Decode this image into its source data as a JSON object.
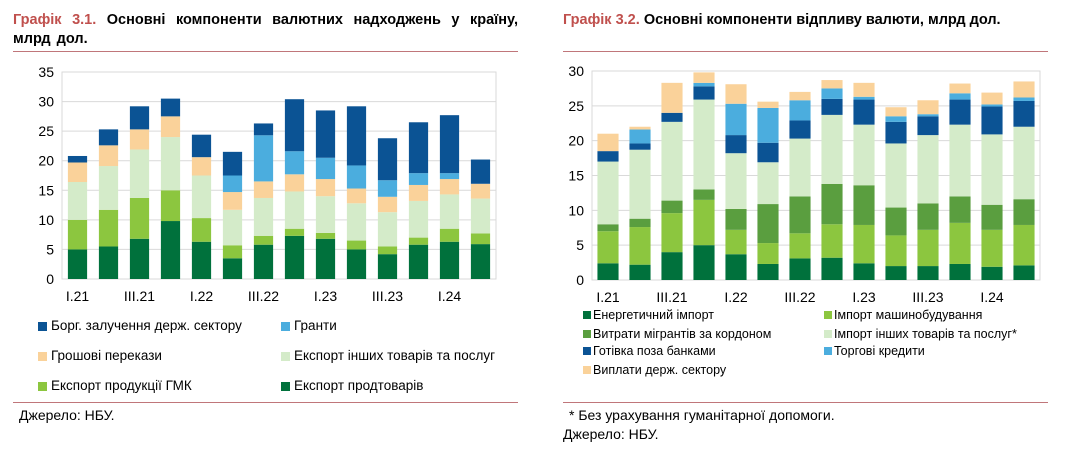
{
  "chart1": {
    "title_label": "Графік 3.1.",
    "title_text": "Основні компоненти валютних надходжень у країну, млрд дол.",
    "source": "Джерело: НБУ.",
    "legend_order": [
      5,
      4,
      3,
      2,
      1,
      0
    ],
    "chart_data": {
      "type": "bar",
      "stacked": true,
      "categories": [
        "I.21",
        "II.21",
        "III.21",
        "IV.21",
        "I.22",
        "II.22",
        "III.22",
        "IV.22",
        "I.23",
        "II.23",
        "III.23",
        "IV.23",
        "I.24",
        "II.24"
      ],
      "x_tick_labels": [
        "I.21",
        "",
        "III.21",
        "",
        "I.22",
        "",
        "III.22",
        "",
        "I.23",
        "",
        "III.23",
        "",
        "I.24",
        ""
      ],
      "ylim": [
        0,
        35
      ],
      "yticks": [
        0,
        5,
        10,
        15,
        20,
        25,
        30,
        35
      ],
      "series": [
        {
          "name": "Експорт продтоварів",
          "color": "#00713c",
          "values": [
            5.0,
            5.5,
            6.8,
            9.8,
            6.3,
            3.5,
            5.8,
            7.3,
            6.8,
            5.0,
            4.2,
            5.8,
            6.3,
            5.9
          ]
        },
        {
          "name": "Експорт продукції ГМК",
          "color": "#8cc63f",
          "values": [
            5.0,
            6.2,
            6.9,
            5.2,
            4.0,
            2.2,
            1.5,
            1.2,
            1.0,
            1.5,
            1.3,
            1.2,
            2.2,
            1.8
          ]
        },
        {
          "name": "Експорт інших товарів та послуг",
          "color": "#d4ebc9",
          "values": [
            6.4,
            7.4,
            8.2,
            9.0,
            7.2,
            6.0,
            6.4,
            6.3,
            6.2,
            6.3,
            5.8,
            6.2,
            5.8,
            5.9
          ]
        },
        {
          "name": "Грошові перекази",
          "color": "#fad29a",
          "values": [
            3.3,
            3.5,
            3.4,
            3.5,
            3.1,
            3.0,
            2.8,
            2.9,
            2.9,
            2.5,
            2.6,
            2.7,
            2.6,
            2.5
          ]
        },
        {
          "name": "Гранти",
          "color": "#4badde",
          "values": [
            0.0,
            0.0,
            0.0,
            0.0,
            0.0,
            2.8,
            7.8,
            3.9,
            3.6,
            3.9,
            2.8,
            2.0,
            1.0,
            0.0
          ]
        },
        {
          "name": "Борг. залучення держ. сектору",
          "color": "#0b5394",
          "values": [
            1.1,
            2.7,
            3.9,
            3.0,
            3.8,
            4.0,
            2.0,
            8.8,
            8.0,
            10.0,
            7.1,
            8.6,
            9.8,
            4.1
          ]
        }
      ]
    }
  },
  "chart2": {
    "title_label": "Графік 3.2.",
    "title_text": "Основні компоненти відпливу валюти, млрд дол.",
    "footnote": "* Без урахування гуманітарної допомоги.",
    "source": "Джерело: НБУ.",
    "legend_order": [
      0,
      1,
      2,
      3,
      4,
      5,
      6
    ],
    "chart_data": {
      "type": "bar",
      "stacked": true,
      "categories": [
        "I.21",
        "II.21",
        "III.21",
        "IV.21",
        "I.22",
        "II.22",
        "III.22",
        "IV.22",
        "I.23",
        "II.23",
        "III.23",
        "IV.23",
        "I.24",
        "II.24"
      ],
      "x_tick_labels": [
        "I.21",
        "",
        "III.21",
        "",
        "I.22",
        "",
        "III.22",
        "",
        "I.23",
        "",
        "III.23",
        "",
        "I.24",
        ""
      ],
      "ylim": [
        0,
        30
      ],
      "yticks": [
        0,
        5,
        10,
        15,
        20,
        25,
        30
      ],
      "series": [
        {
          "name": "Енергетичний імпорт",
          "color": "#00713c",
          "values": [
            2.4,
            2.2,
            4.0,
            5.0,
            3.7,
            2.3,
            3.1,
            3.2,
            2.4,
            2.0,
            2.0,
            2.3,
            1.9,
            2.1
          ]
        },
        {
          "name": "Імпорт машинобудування",
          "color": "#8cc63f",
          "values": [
            4.6,
            5.4,
            5.6,
            6.5,
            3.5,
            3.0,
            3.6,
            4.8,
            5.5,
            4.4,
            5.2,
            5.9,
            5.3,
            5.8
          ]
        },
        {
          "name": "Витрати мігрантів за кордоном",
          "color": "#5a9e3f",
          "values": [
            1.0,
            1.2,
            1.8,
            1.5,
            3.0,
            5.6,
            5.3,
            5.8,
            5.7,
            4.0,
            3.8,
            3.8,
            3.6,
            3.7
          ]
        },
        {
          "name": "Імпорт інших товарів та послуг*",
          "color": "#d4ebc9",
          "values": [
            9.0,
            9.9,
            11.3,
            12.9,
            8.0,
            6.0,
            8.3,
            9.9,
            8.7,
            9.2,
            9.8,
            10.3,
            10.1,
            10.4
          ]
        },
        {
          "name": "Готівка поза банками",
          "color": "#0b5394",
          "values": [
            1.5,
            0.9,
            1.3,
            1.9,
            2.6,
            2.8,
            2.6,
            2.3,
            3.6,
            3.1,
            2.7,
            3.6,
            4.0,
            3.7
          ]
        },
        {
          "name": "Торгові кредити",
          "color": "#4badde",
          "values": [
            0.0,
            2.0,
            0.0,
            0.5,
            4.5,
            5.0,
            2.9,
            1.5,
            0.4,
            0.8,
            0.3,
            0.9,
            0.3,
            0.5
          ]
        },
        {
          "name": "Виплати держ. сектору",
          "color": "#fad29a",
          "values": [
            2.5,
            0.4,
            4.3,
            1.5,
            2.8,
            0.9,
            1.2,
            1.2,
            2.0,
            1.3,
            2.0,
            1.4,
            1.7,
            2.3
          ]
        }
      ]
    }
  }
}
